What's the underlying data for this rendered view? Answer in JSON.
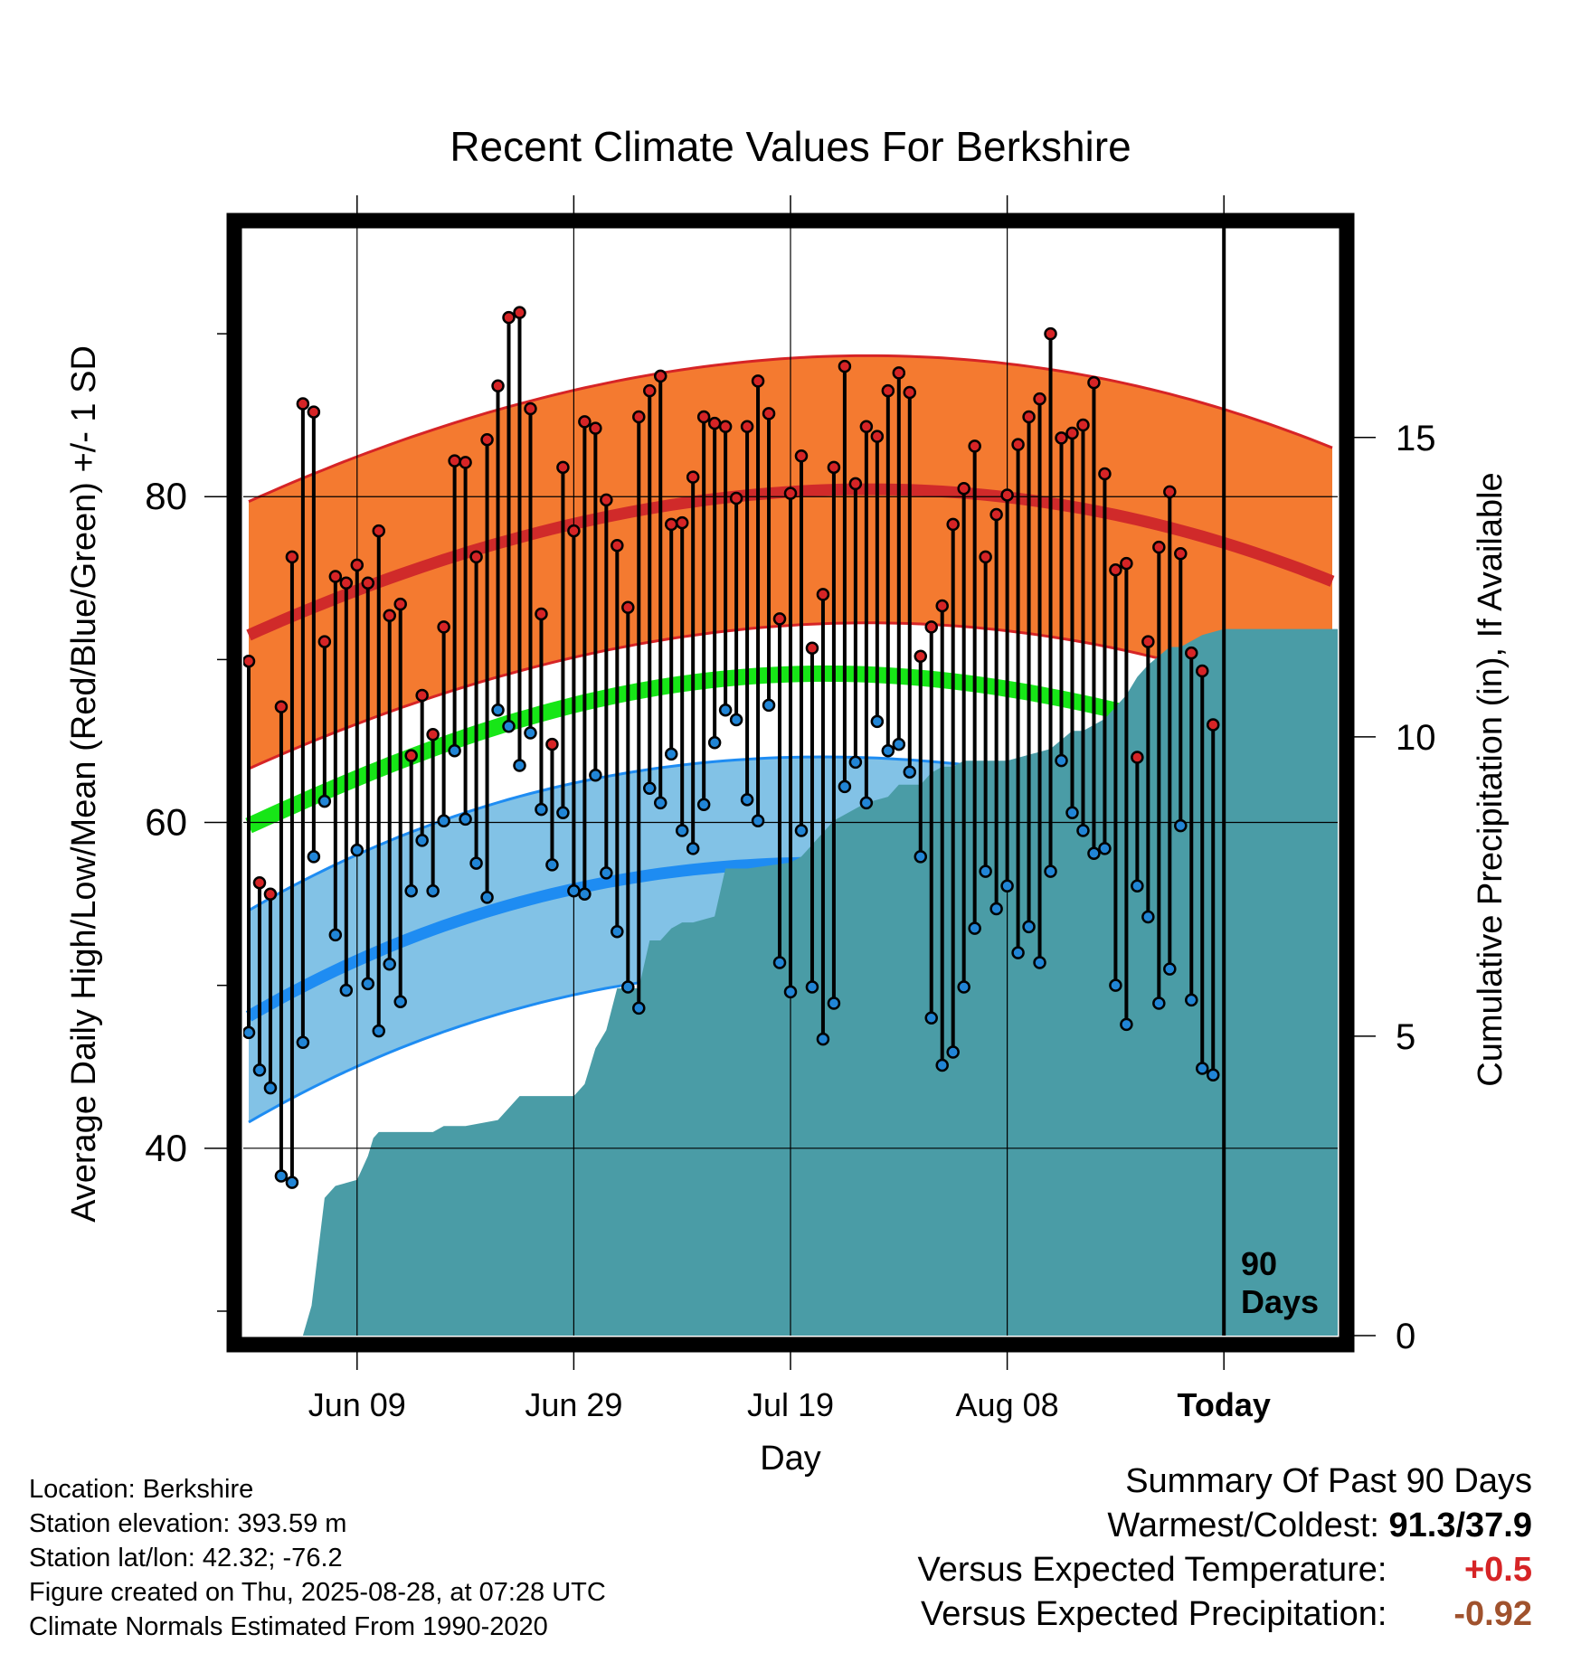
{
  "colors": {
    "high_band": "#F47A30",
    "high_edge": "#D62426",
    "high_mean": "#D02A2A",
    "low_band": "#82C2E6",
    "low_edge": "#1E8CF2",
    "low_mean": "#1E8CF2",
    "mean": "#17E617",
    "precip": "#4A9CA6",
    "high_dot": "#D62426",
    "low_dot": "#2185D6",
    "positive": "#D62426",
    "negative": "#A0522D"
  },
  "chart_data": {
    "type": "line",
    "title": "Recent Climate Values For Berkshire",
    "xlabel": "Day",
    "ylabel": "Average Daily High/Low/Mean (Red/Blue/Green) +/- 1 SD",
    "y2label": "Cumulative Precipitation (in), If Available",
    "x_ticks": [
      "Jun 09",
      "Jun 29",
      "Jul 19",
      "Aug 08",
      "Today"
    ],
    "x_tick_days": [
      10,
      30,
      50,
      70,
      90
    ],
    "xlim": [
      -0.5,
      100.5
    ],
    "ylim": [
      28.5,
      96.5
    ],
    "y_ticks": [
      40,
      60,
      80
    ],
    "y2lim": [
      0,
      18.5
    ],
    "y2_ticks": [
      0,
      5,
      10,
      15
    ],
    "today_day": 90,
    "today_label_line1": "90",
    "today_label_line2": "Days",
    "normal_high_mean": {
      "days": [
        0,
        25,
        50,
        75,
        100
      ],
      "values": [
        71.5,
        77.5,
        80.3,
        79.5,
        74.8
      ]
    },
    "normal_high_sd": 8.2,
    "normal_mean": {
      "days": [
        0,
        25,
        50,
        75,
        100
      ],
      "values": [
        59.8,
        66.3,
        69.1,
        67.6,
        63.3
      ]
    },
    "normal_low_mean": {
      "days": [
        0,
        25,
        50,
        75,
        100
      ],
      "values": [
        48.1,
        55.1,
        57.5,
        56.2,
        51.8
      ]
    },
    "normal_low_sd": 6.5,
    "daily_highs": [
      69.9,
      56.3,
      55.6,
      67.1,
      76.3,
      85.7,
      85.2,
      71.1,
      75.1,
      74.7,
      75.8,
      74.7,
      77.9,
      72.7,
      73.4,
      64.1,
      67.8,
      65.4,
      72.0,
      82.2,
      82.1,
      76.3,
      83.5,
      86.8,
      91.0,
      91.3,
      85.4,
      72.8,
      64.8,
      81.8,
      77.9,
      84.6,
      84.2,
      79.8,
      77.0,
      73.2,
      84.9,
      86.5,
      87.4,
      78.3,
      78.4,
      81.2,
      84.9,
      84.5,
      84.3,
      79.9,
      84.3,
      87.1,
      85.1,
      72.5,
      80.2,
      82.5,
      70.7,
      74.0,
      81.8,
      88.0,
      80.8,
      84.3,
      83.7,
      86.5,
      87.6,
      86.4,
      70.2,
      72.0,
      73.3,
      78.3,
      80.5,
      83.1,
      76.3,
      78.9,
      80.1,
      83.2,
      84.9,
      86.0,
      90.0,
      83.6,
      83.9,
      84.4,
      87.0,
      81.4,
      75.5,
      75.9,
      64.0,
      71.1,
      76.9,
      80.3,
      76.5,
      70.4,
      69.3,
      66.0
    ],
    "daily_lows": [
      47.1,
      44.8,
      43.7,
      38.3,
      37.9,
      46.5,
      57.9,
      61.3,
      53.1,
      49.7,
      58.3,
      50.1,
      47.2,
      51.3,
      49.0,
      55.8,
      58.9,
      55.8,
      60.1,
      64.4,
      60.2,
      57.5,
      55.4,
      66.9,
      65.9,
      63.5,
      65.5,
      60.8,
      57.4,
      60.6,
      55.8,
      55.6,
      62.9,
      56.9,
      53.3,
      49.9,
      48.6,
      62.1,
      61.2,
      64.2,
      59.5,
      58.4,
      61.1,
      64.9,
      66.9,
      66.3,
      61.4,
      60.1,
      67.2,
      51.4,
      49.6,
      59.5,
      49.9,
      46.7,
      48.9,
      62.2,
      63.7,
      61.2,
      66.2,
      64.4,
      64.8,
      63.1,
      57.9,
      48.0,
      45.1,
      45.9,
      49.9,
      53.5,
      57.0,
      54.7,
      56.1,
      52.0,
      53.6,
      51.4,
      57.0,
      63.8,
      60.6,
      59.5,
      58.1,
      58.4,
      50.0,
      47.6,
      56.1,
      54.2,
      48.9,
      51.0,
      59.8,
      49.1,
      44.9,
      44.5
    ],
    "precip_cumulative": {
      "days": [
        5,
        5.8,
        7,
        8,
        10,
        10.5,
        11,
        11.5,
        12,
        14,
        17,
        18,
        20,
        23,
        25,
        26,
        30,
        31,
        32,
        33,
        34,
        36,
        37,
        38,
        39,
        40,
        41,
        43,
        44,
        45,
        46,
        50,
        51,
        52,
        54,
        55,
        56,
        57,
        59,
        60,
        62,
        63,
        64,
        65,
        66,
        70,
        74,
        76,
        77,
        78,
        79,
        81,
        82,
        83,
        85,
        86,
        87,
        88,
        90,
        101
      ],
      "values": [
        0,
        0.5,
        2.3,
        2.5,
        2.6,
        2.8,
        3.0,
        3.3,
        3.4,
        3.4,
        3.4,
        3.5,
        3.5,
        3.6,
        4.0,
        4.0,
        4.0,
        4.2,
        4.8,
        5.1,
        5.8,
        5.8,
        6.6,
        6.6,
        6.8,
        6.9,
        6.9,
        7.0,
        7.8,
        7.8,
        7.8,
        7.9,
        8.0,
        8.2,
        8.6,
        8.7,
        8.8,
        8.9,
        9.0,
        9.2,
        9.2,
        9.4,
        9.5,
        9.5,
        9.6,
        9.6,
        9.8,
        10.1,
        10.1,
        10.2,
        10.3,
        10.7,
        11.0,
        11.2,
        11.5,
        11.5,
        11.6,
        11.7,
        11.8,
        11.8
      ]
    }
  },
  "meta": {
    "location": "Location: Berkshire",
    "elevation": "Station elevation: 393.59 m",
    "latlon": "Station lat/lon: 42.32; -76.2",
    "created": "Figure created on Thu, 2025-08-28, at 07:28 UTC",
    "normals": "Climate Normals Estimated From 1990-2020"
  },
  "summary": {
    "title": "Summary Of Past 90 Days",
    "warm_label": "Warmest/Coldest:",
    "warm_value": "91.3/37.9",
    "temp_label": "Versus Expected Temperature:",
    "temp_value": "+0.5",
    "precip_label": "Versus Expected Precipitation:",
    "precip_value": "-0.92"
  }
}
